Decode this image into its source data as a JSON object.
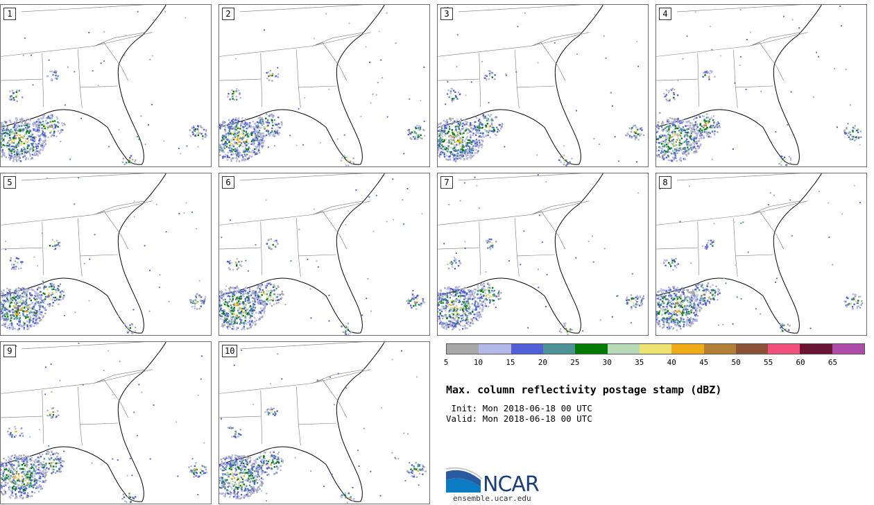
{
  "panels": [
    {
      "label": "1"
    },
    {
      "label": "2"
    },
    {
      "label": "3"
    },
    {
      "label": "4"
    },
    {
      "label": "5"
    },
    {
      "label": "6"
    },
    {
      "label": "7"
    },
    {
      "label": "8"
    },
    {
      "label": "9"
    },
    {
      "label": "10"
    }
  ],
  "colorbar": {
    "colors": [
      "#a7a7a7",
      "#b3b8e9",
      "#5160d6",
      "#4d9297",
      "#007b00",
      "#b8dab8",
      "#ede274",
      "#eeac19",
      "#b37e35",
      "#8b5238",
      "#f1507d",
      "#6b1535",
      "#ad4ba9"
    ],
    "ticks": [
      "5",
      "10",
      "15",
      "20",
      "25",
      "30",
      "35",
      "40",
      "45",
      "50",
      "55",
      "60",
      "65"
    ]
  },
  "title": "Max. column reflectivity postage stamp (dBZ)",
  "init": " Init: Mon 2018-06-18 00 UTC",
  "valid": "Valid: Mon 2018-06-18 00 UTC",
  "logo": {
    "name": "NCAR",
    "site": "ensemble.ucar.edu"
  }
}
